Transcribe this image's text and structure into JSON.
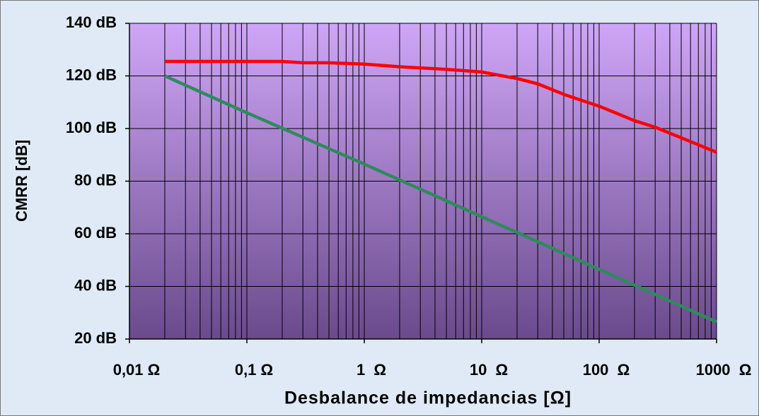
{
  "chart_data": {
    "type": "line",
    "xlabel": "Desbalance de impedancias [Ω]",
    "ylabel": "CMRR [dB]",
    "xscale": "log",
    "xlim": [
      0.01,
      1000
    ],
    "xticks": [
      {
        "value": 0.01,
        "label": "0,01 Ω"
      },
      {
        "value": 0.1,
        "label": "0,1 Ω"
      },
      {
        "value": 1,
        "label": "1  Ω"
      },
      {
        "value": 10,
        "label": "10  Ω"
      },
      {
        "value": 100,
        "label": "100  Ω"
      },
      {
        "value": 1000,
        "label": "1000  Ω"
      }
    ],
    "xminorticks": [
      0.02,
      0.03,
      0.04,
      0.05,
      0.06,
      0.07,
      0.08,
      0.09,
      0.2,
      0.3,
      0.4,
      0.5,
      0.6,
      0.7,
      0.8,
      0.9,
      2,
      3,
      4,
      5,
      6,
      7,
      8,
      9,
      20,
      30,
      40,
      50,
      60,
      70,
      80,
      90,
      200,
      300,
      400,
      500,
      600,
      700,
      800,
      900
    ],
    "ylim": [
      20,
      140
    ],
    "yticks": [
      {
        "value": 20,
        "label": "20 dB"
      },
      {
        "value": 40,
        "label": "40 dB"
      },
      {
        "value": 60,
        "label": "60 dB"
      },
      {
        "value": 80,
        "label": "80 dB"
      },
      {
        "value": 100,
        "label": "100 dB"
      },
      {
        "value": 120,
        "label": "120 dB"
      },
      {
        "value": 140,
        "label": "140 dB"
      }
    ],
    "grid": true,
    "series": [
      {
        "color": "#ff0000",
        "x": [
          0.02,
          0.2,
          0.3,
          0.5,
          1,
          2,
          5,
          10,
          20,
          30,
          50,
          100,
          200,
          300,
          500,
          1000
        ],
        "values": [
          125.5,
          125.5,
          125,
          125,
          124.5,
          123.5,
          122.5,
          121.5,
          119,
          117,
          113,
          108.5,
          103,
          100.5,
          96.5,
          91
        ]
      },
      {
        "color": "#2f8a5e",
        "x": [
          0.02,
          0.1,
          1,
          10,
          100,
          1000
        ],
        "values": [
          120,
          106,
          86.5,
          66.5,
          46.5,
          26.5
        ]
      }
    ]
  }
}
